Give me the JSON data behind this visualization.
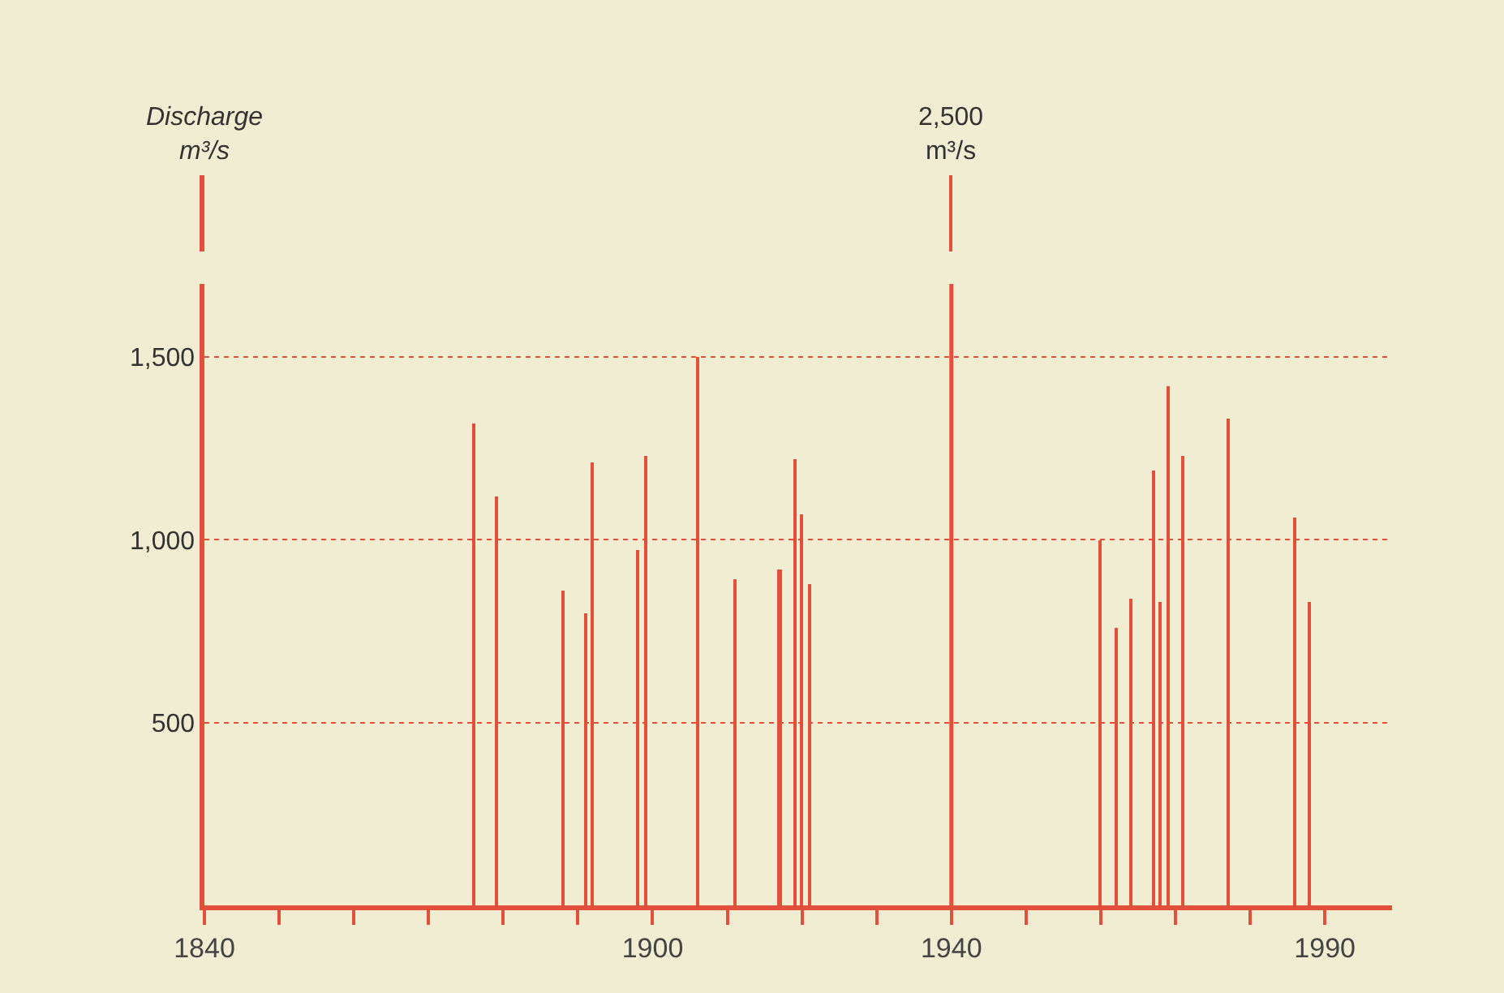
{
  "chart_data": [
    {
      "type": "bar",
      "x": [
        1940
      ],
      "values": [
        2500
      ],
      "value_labels": [
        "2,500\nm³/s"
      ],
      "color": "#e0503a",
      "tick_labels": false
    },
    {
      "type": "bar",
      "ylabel": "Discharge\nm³/s",
      "color": "#e0503a",
      "x": [
        1876,
        1879,
        1888,
        1891,
        1892,
        1898,
        1899,
        1906,
        1911,
        1917,
        1919,
        1920,
        1921,
        1960,
        1962,
        1964,
        1967,
        1968,
        1969,
        1971,
        1977,
        1986,
        1988
      ],
      "values": [
        1320,
        1120,
        860,
        800,
        1210,
        970,
        1230,
        1500,
        890,
        920,
        1220,
        1070,
        880,
        1000,
        760,
        840,
        1190,
        830,
        1420,
        1230,
        1330,
        1060,
        830
      ],
      "xlim": [
        1840,
        1999
      ],
      "xticks": [
        1840,
        {
          "value": 1850,
          "label": null
        },
        {
          "value": 1860,
          "label": null
        },
        {
          "value": 1870,
          "label": null
        },
        {
          "value": 1880,
          "label": null
        },
        {
          "value": 1890,
          "label": null
        },
        1900,
        {
          "value": 1910,
          "label": null
        },
        {
          "value": 1920,
          "label": null
        },
        {
          "value": 1930,
          "label": null
        },
        1940,
        {
          "value": 1950,
          "label": null
        },
        {
          "value": 1960,
          "label": null
        },
        {
          "value": 1970,
          "label": null
        },
        {
          "value": 1980,
          "label": null
        },
        1990
      ],
      "ylim": [
        0,
        1700
      ],
      "yticks": [
        {
          "value": 500,
          "label": "500"
        },
        {
          "value": 1000,
          "label": "1,000"
        },
        {
          "value": 1500,
          "label": "1,500"
        }
      ],
      "grid": "y",
      "ref_lines": [
        {
          "axis": "x",
          "value": 1940
        }
      ]
    }
  ]
}
